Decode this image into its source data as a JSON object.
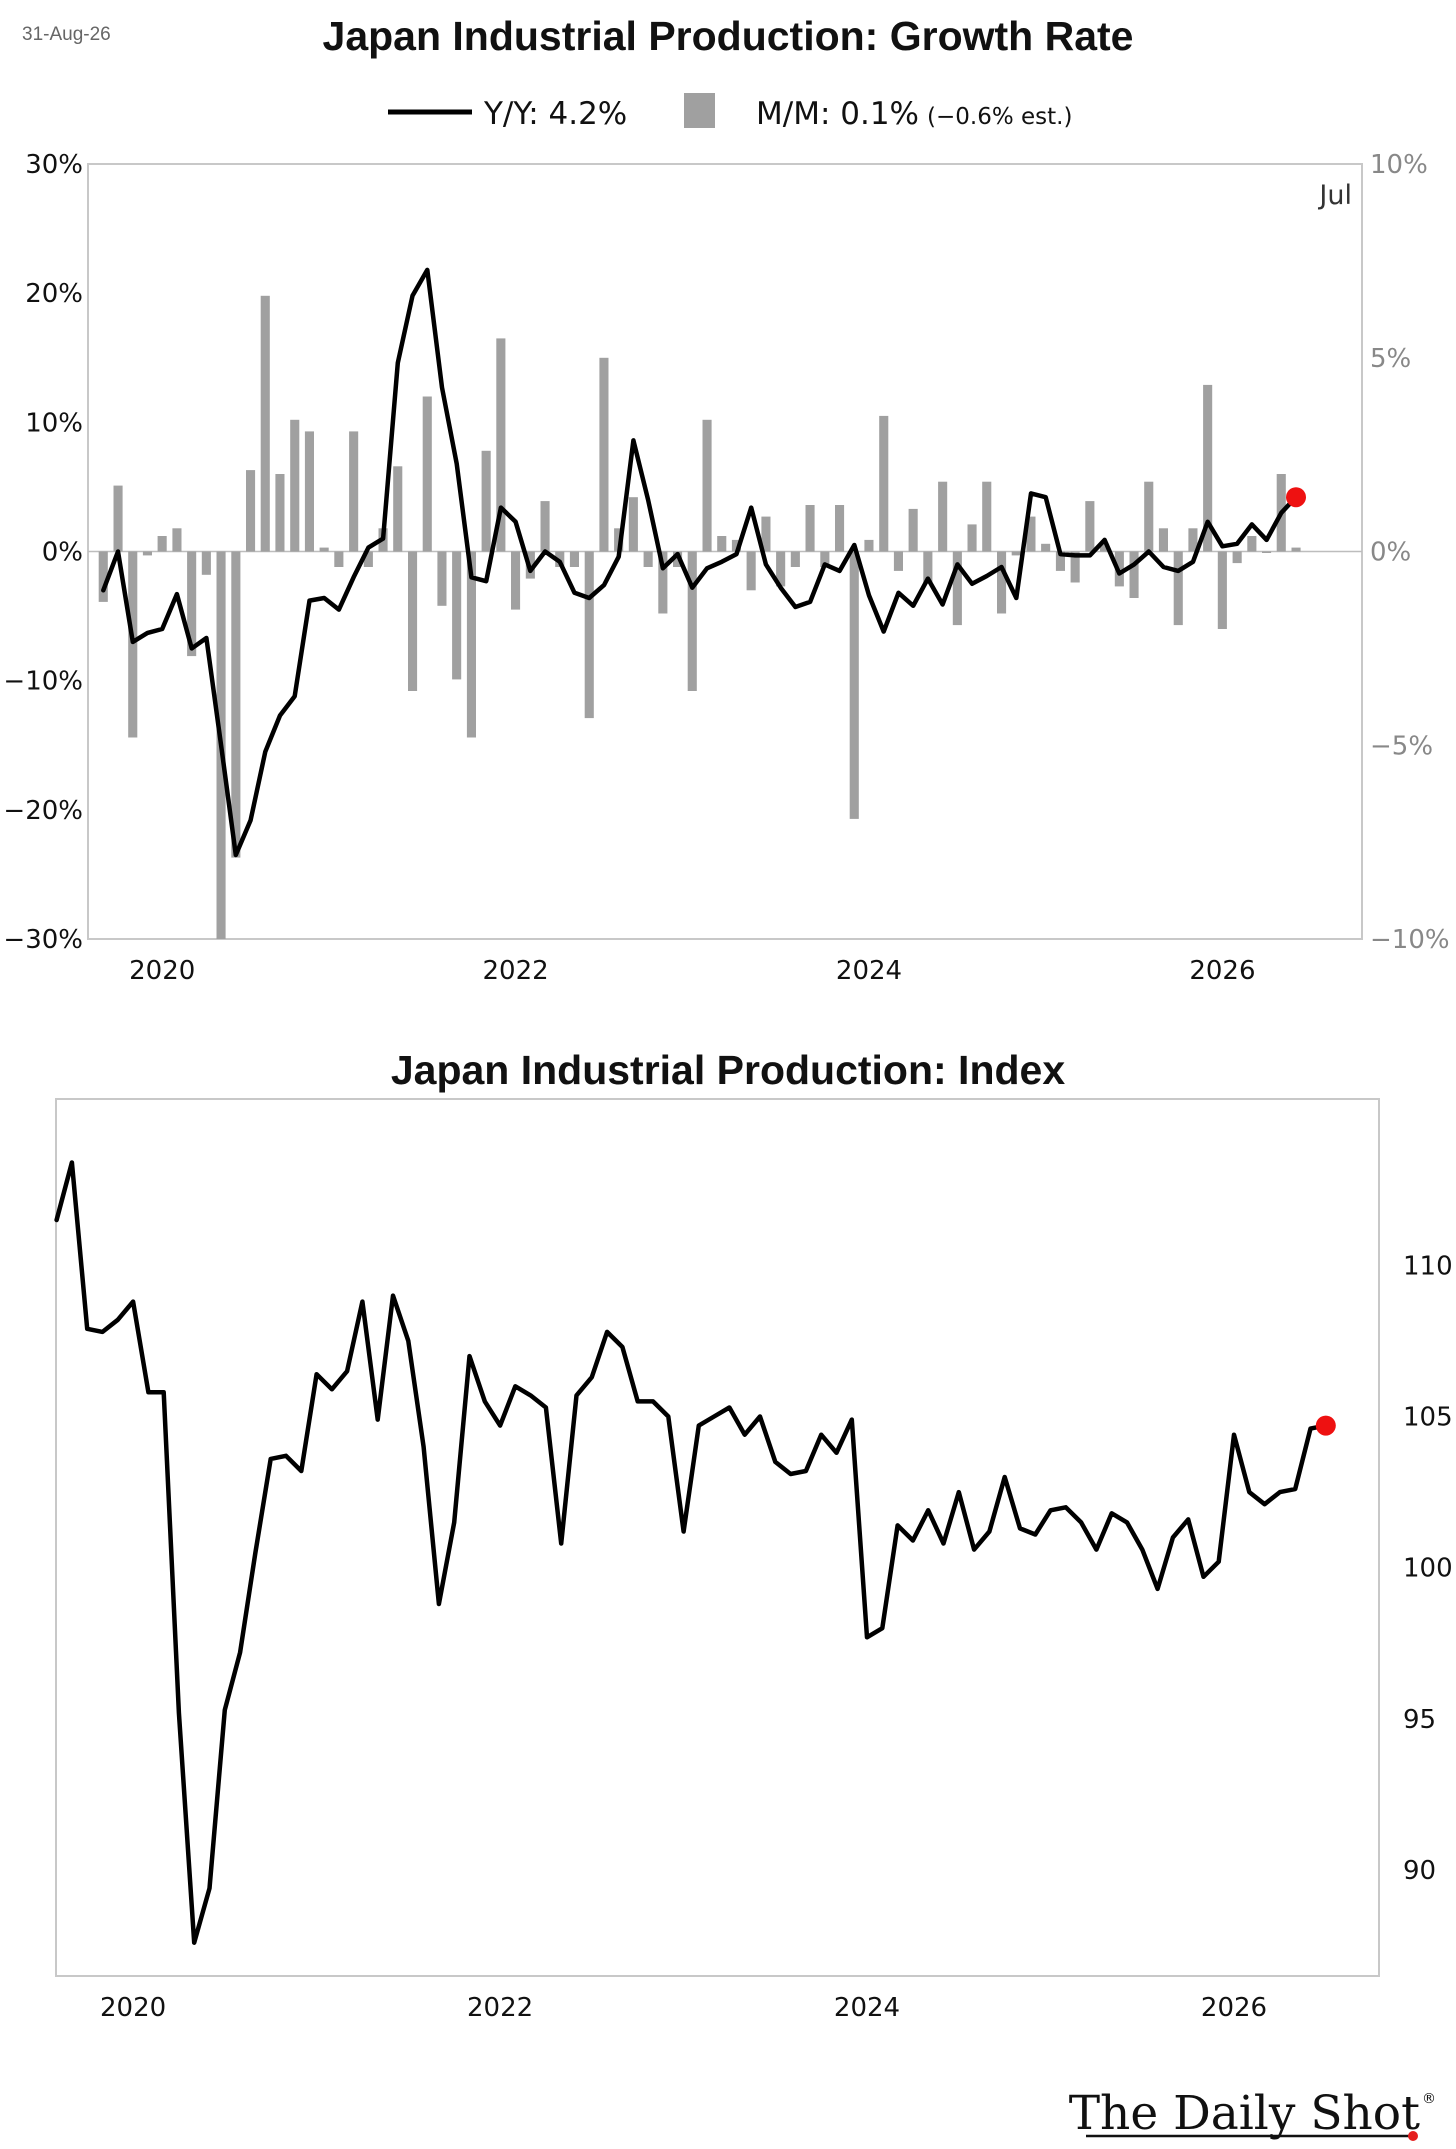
{
  "date_label": "31-Aug-26",
  "brand": {
    "name": "The Daily Shot",
    "mark": "®",
    "accent_color": "#e51d1d"
  },
  "colors": {
    "line": "#000000",
    "bars": "#a0a0a0",
    "marker": "#ee1111",
    "frame": "#c8c8c8"
  },
  "chart_data": [
    {
      "type": "bar+line",
      "title": "Japan Industrial Production: Growth Rate",
      "legend": [
        {
          "label": "Y/Y: 4.2%",
          "marker": "line",
          "note": ""
        },
        {
          "label": "M/M: 0.1%",
          "marker": "bar",
          "note": "(−0.6% est.)"
        }
      ],
      "annotation": "Jul",
      "x_ticks": [
        "2020",
        "2022",
        "2024",
        "2026"
      ],
      "x_tick_values": [
        2020,
        2022,
        2024,
        2026
      ],
      "x_range": [
        2019.58,
        2026.79
      ],
      "y_left": {
        "range": [
          -30,
          30
        ],
        "ticks": [
          "−30%",
          "−20%",
          "−10%",
          "0%",
          "10%",
          "20%",
          "30%"
        ],
        "tick_values": [
          -30,
          -20,
          -10,
          0,
          10,
          20,
          30
        ]
      },
      "y_right": {
        "range": [
          -10,
          10
        ],
        "ticks": [
          "−10%",
          "−5%",
          "0%",
          "5%",
          "10%"
        ],
        "tick_values": [
          -10,
          -5,
          0,
          5,
          10
        ]
      },
      "series": [
        {
          "name": "Y/Y",
          "start": "2019-09",
          "values": [
            -3.0,
            0.0,
            -7.0,
            -6.3,
            -6.0,
            -3.3,
            -7.5,
            -6.7,
            -15.0,
            -23.5,
            -20.8,
            -15.5,
            -12.7,
            -11.2,
            -3.8,
            -3.6,
            -4.5,
            -2.0,
            0.3,
            1.0,
            14.6,
            19.8,
            21.8,
            12.7,
            6.8,
            -2.0,
            -2.3,
            3.4,
            2.3,
            -1.5,
            0.0,
            -0.8,
            -3.2,
            -3.6,
            -2.6,
            -0.4,
            8.6,
            4.0,
            -1.3,
            -0.2,
            -2.8,
            -1.3,
            -0.8,
            -0.2,
            3.4,
            -1.0,
            -2.8,
            -4.3,
            -3.9,
            -1.0,
            -1.5,
            0.5,
            -3.4,
            -6.2,
            -3.2,
            -4.2,
            -2.1,
            -4.1,
            -1.0,
            -2.5,
            -1.9,
            -1.2,
            -3.6,
            4.5,
            4.2,
            -0.2,
            -0.3,
            -0.3,
            0.9,
            -1.7,
            -1.0,
            0.0,
            -1.2,
            -1.5,
            -0.8,
            2.3,
            0.4,
            0.6,
            2.1,
            0.9,
            3.0,
            4.2
          ]
        },
        {
          "name": "M/M",
          "start": "2019-09",
          "values": [
            -1.3,
            1.7,
            -4.8,
            -0.1,
            0.4,
            0.6,
            -2.7,
            -0.6,
            -10.0,
            -7.9,
            2.1,
            6.6,
            2.0,
            3.4,
            3.1,
            0.1,
            -0.4,
            3.1,
            -0.4,
            0.6,
            2.2,
            -3.6,
            4.0,
            -1.4,
            -3.3,
            -4.8,
            2.6,
            5.5,
            -1.5,
            -0.7,
            1.3,
            -0.4,
            -0.4,
            -4.3,
            5.0,
            0.6,
            1.4,
            -0.4,
            -1.6,
            -0.4,
            -3.6,
            3.4,
            0.4,
            0.3,
            -1.0,
            0.9,
            -0.9,
            -0.4,
            1.2,
            -0.4,
            1.2,
            -6.9,
            0.3,
            3.5,
            -0.5,
            1.1,
            -0.8,
            1.8,
            -1.9,
            0.7,
            1.8,
            -1.6,
            -0.1,
            0.9,
            0.2,
            -0.5,
            -0.8,
            1.3,
            0.2,
            -0.9,
            -1.2,
            1.8,
            0.6,
            -1.9,
            0.6,
            4.3,
            -2.0,
            -0.3,
            0.4,
            0.0,
            2.0,
            0.1
          ]
        }
      ]
    },
    {
      "type": "line",
      "title": "Japan Industrial Production: Index",
      "x_ticks": [
        "2020",
        "2022",
        "2024",
        "2026"
      ],
      "x_tick_values": [
        2020,
        2022,
        2024,
        2026
      ],
      "x_range": [
        2019.58,
        2026.79
      ],
      "y_right": {
        "range": [
          86.5,
          115.5
        ],
        "ticks": [
          "90",
          "95",
          "100",
          "105",
          "110"
        ],
        "tick_values": [
          90,
          95,
          100,
          105,
          110
        ]
      },
      "series": [
        {
          "name": "Index",
          "start": "2019-08",
          "values": [
            111.5,
            113.4,
            107.9,
            107.8,
            108.2,
            108.8,
            105.8,
            105.8,
            95.2,
            87.6,
            89.4,
            95.3,
            97.2,
            100.5,
            103.6,
            103.7,
            103.2,
            106.4,
            105.9,
            106.5,
            108.8,
            104.9,
            109.0,
            107.5,
            104.0,
            98.8,
            101.5,
            107.0,
            105.5,
            104.7,
            106.0,
            105.7,
            105.3,
            100.8,
            105.7,
            106.3,
            107.8,
            107.3,
            105.5,
            105.5,
            105.0,
            101.2,
            104.7,
            105.0,
            105.3,
            104.4,
            105.0,
            103.5,
            103.1,
            103.2,
            104.4,
            103.8,
            104.9,
            97.7,
            98.0,
            101.4,
            100.9,
            101.9,
            100.8,
            102.5,
            100.6,
            101.2,
            103.0,
            101.3,
            101.1,
            101.9,
            102.0,
            101.5,
            100.6,
            101.8,
            101.5,
            100.6,
            99.3,
            101.0,
            101.6,
            99.7,
            100.2,
            104.4,
            102.5,
            102.1,
            102.5,
            102.6,
            104.6,
            104.7
          ]
        }
      ]
    }
  ]
}
